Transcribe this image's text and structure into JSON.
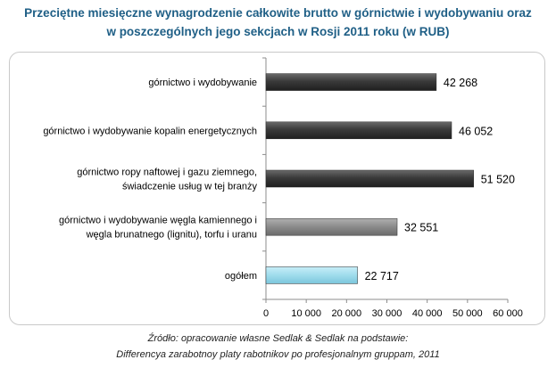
{
  "title_line1": "Przeciętne miesięczne wynagrodzenie całkowite brutto w górnictwie i wydobywaniu oraz",
  "title_line2": "w poszczególnych jego sekcjach w Rosji 2011 roku (w RUB)",
  "source_line1": "Źródło: opracowanie własne Sedlak & Sedlak na podstawie:",
  "source_line2": "Differencya  zarabotnoy platy rabotnikov po profesjonalnym gruppam, 2011",
  "chart_data": {
    "type": "bar",
    "orientation": "horizontal",
    "categories": [
      [
        "górnictwo i wydobywanie"
      ],
      [
        "górnictwo i wydobywanie kopalin energetycznych"
      ],
      [
        "górnictwo ropy naftowej i gazu ziemnego,",
        "świadczenie usług w tej branży"
      ],
      [
        "górnictwo i wydobywanie węgla kamiennego i",
        "węgla brunatnego (lignitu), torfu i uranu"
      ],
      [
        "ogółem"
      ]
    ],
    "values": [
      42268,
      46052,
      51520,
      32551,
      22717
    ],
    "value_labels": [
      "42 268",
      "46 052",
      "51 520",
      "32 551",
      "22 717"
    ],
    "bar_colors": [
      "#3e3e3e",
      "#3e3e3e",
      "#3e3e3e",
      "#8a8a8a",
      "#9fdcec"
    ],
    "xlim": [
      0,
      60000
    ],
    "xticks": [
      0,
      10000,
      20000,
      30000,
      40000,
      50000,
      60000
    ],
    "xtick_labels": [
      "0",
      "10 000",
      "20 000",
      "30 000",
      "40 000",
      "50 000",
      "60 000"
    ],
    "grid": false,
    "legend": "none"
  }
}
